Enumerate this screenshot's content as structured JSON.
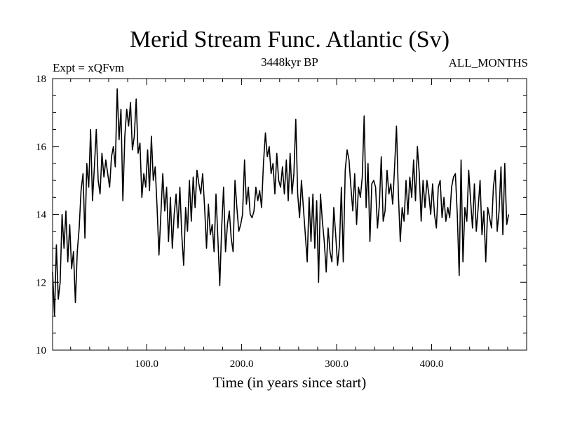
{
  "chart_data": {
    "type": "line",
    "title": "Merid Stream Func. Atlantic (Sv)",
    "experiment": "Expt = xQFvm",
    "period": "3448kyr BP",
    "season": "ALL_MONTHS",
    "xlabel": "Time (in years since start)",
    "ylabel": "",
    "xlim": [
      1,
      500
    ],
    "ylim": [
      10,
      18
    ],
    "x_ticks": [
      100,
      200,
      300,
      400
    ],
    "x_tick_labels": [
      "100.0",
      "200.0",
      "300.0",
      "400.0"
    ],
    "y_ticks": [
      10,
      12,
      14,
      16,
      18
    ],
    "y_tick_labels": [
      "10",
      "12",
      "14",
      "16",
      "18"
    ],
    "grid": false,
    "series": [
      {
        "name": "Merid Stream Func. Atlantic",
        "color": "#000000",
        "x_start": 1,
        "x_step": 2,
        "values": [
          12.3,
          11.0,
          13.1,
          11.5,
          12.0,
          14.0,
          13.0,
          14.1,
          12.6,
          13.7,
          12.4,
          12.9,
          11.4,
          12.9,
          13.6,
          14.7,
          15.2,
          13.3,
          15.5,
          14.8,
          16.5,
          14.4,
          15.4,
          16.5,
          15.0,
          14.6,
          15.8,
          15.1,
          15.6,
          15.2,
          14.8,
          15.7,
          16.0,
          15.4,
          17.7,
          16.2,
          17.1,
          14.4,
          16.3,
          17.1,
          16.6,
          17.3,
          15.9,
          16.3,
          17.4,
          15.8,
          16.1,
          14.5,
          15.2,
          14.8,
          15.9,
          14.7,
          16.3,
          15.0,
          15.4,
          14.2,
          12.8,
          14.0,
          15.2,
          14.1,
          14.8,
          13.2,
          14.5,
          13.0,
          14.0,
          14.6,
          13.6,
          14.8,
          13.4,
          12.5,
          14.2,
          13.5,
          15.0,
          13.8,
          15.1,
          14.2,
          15.3,
          14.9,
          14.6,
          15.2,
          14.2,
          13.0,
          14.3,
          13.4,
          13.7,
          12.9,
          14.6,
          13.3,
          11.9,
          13.6,
          14.8,
          12.9,
          13.7,
          14.1,
          13.3,
          12.9,
          15.0,
          14.2,
          13.5,
          13.7,
          14.0,
          15.6,
          14.3,
          14.8,
          14.0,
          13.9,
          14.1,
          14.8,
          14.4,
          14.7,
          14.2,
          15.5,
          16.4,
          15.7,
          16.0,
          15.2,
          15.5,
          14.6,
          15.8,
          15.0,
          14.8,
          15.4,
          14.6,
          15.6,
          14.4,
          15.8,
          14.6,
          15.2,
          16.8,
          14.6,
          13.9,
          15.0,
          14.2,
          13.4,
          12.6,
          14.5,
          13.2,
          14.6,
          13.0,
          14.4,
          12.0,
          14.6,
          13.8,
          13.2,
          12.3,
          13.6,
          12.9,
          12.6,
          14.2,
          13.4,
          12.5,
          13.1,
          14.8,
          12.6,
          15.3,
          15.9,
          15.6,
          14.8,
          14.1,
          15.2,
          13.7,
          14.8,
          14.5,
          15.1,
          16.9,
          14.2,
          15.5,
          13.2,
          14.9,
          15.0,
          14.8,
          13.6,
          14.3,
          15.7,
          13.8,
          14.1,
          15.3,
          14.6,
          14.9,
          14.3,
          15.4,
          16.6,
          14.6,
          13.2,
          14.2,
          13.8,
          15.0,
          14.0,
          15.1,
          14.5,
          15.6,
          14.4,
          16.0,
          15.2,
          13.8,
          15.0,
          14.2,
          15.0,
          14.6,
          14.0,
          14.9,
          14.0,
          13.6,
          14.8,
          15.0,
          13.9,
          14.5,
          13.8,
          14.2,
          13.9,
          14.8,
          15.1,
          15.2,
          14.0,
          12.2,
          15.6,
          12.6,
          14.2,
          13.8,
          15.3,
          14.4,
          13.6,
          14.9,
          13.5,
          14.2,
          15.0,
          13.4,
          14.1,
          12.6,
          14.2,
          13.9,
          13.6,
          14.8,
          15.3,
          13.5,
          14.1,
          15.4,
          13.4,
          15.5,
          13.7,
          14.0
        ]
      }
    ]
  }
}
